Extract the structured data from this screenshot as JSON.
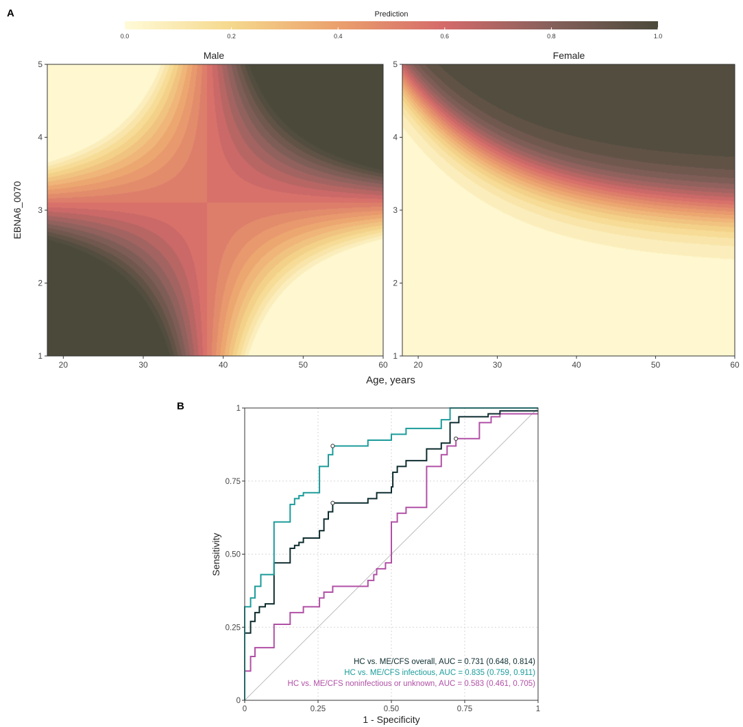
{
  "panel_a": {
    "label": "A",
    "colorbar": {
      "title": "Prediction",
      "ticks": [
        "0.0",
        "0.2",
        "0.4",
        "0.6",
        "0.8",
        "1.0"
      ],
      "tick_values": [
        0.0,
        0.2,
        0.4,
        0.6,
        0.8,
        1.0
      ],
      "colors": [
        "#fffbd8",
        "#f5d88c",
        "#eba06d",
        "#d46a6a",
        "#86605b",
        "#4b4a3a"
      ]
    }
  },
  "panel_b": {
    "label": "B"
  },
  "chart_data": [
    {
      "type": "heatmap",
      "panel": "A",
      "facet": "Male",
      "title": "Male",
      "xlabel": "Age, years",
      "ylabel": "EBNA6_0070",
      "xlim": [
        18,
        60
      ],
      "ylim": [
        1,
        5
      ],
      "xticks": [
        20,
        30,
        40,
        50,
        60
      ],
      "yticks": [
        1,
        2,
        3,
        4,
        5
      ],
      "value_range": [
        0,
        1
      ],
      "saddle_point": {
        "age": 38,
        "ebna6_0070": 3.1,
        "prediction": 0.55
      },
      "corner_predictions": {
        "age_18_ebna_1": 1.0,
        "age_18_ebna_5": 0.02,
        "age_60_ebna_1": 0.02,
        "age_60_ebna_5": 1.0
      }
    },
    {
      "type": "heatmap",
      "panel": "A",
      "facet": "Female",
      "title": "Female",
      "xlabel": "Age, years",
      "ylabel": "EBNA6_0070",
      "xlim": [
        18,
        60
      ],
      "ylim": [
        1,
        5
      ],
      "xticks": [
        20,
        30,
        40,
        50,
        60
      ],
      "yticks": [
        1,
        2,
        3,
        4,
        5
      ],
      "value_range": [
        0,
        1
      ],
      "corner_predictions": {
        "age_18_ebna_1": 0.0,
        "age_18_ebna_5": 0.55,
        "age_60_ebna_1": 0.0,
        "age_60_ebna_5": 1.0
      },
      "note": "prediction near 0 below EBNA6_0070 of about 3"
    },
    {
      "type": "line",
      "panel": "B",
      "title": "",
      "xlabel": "1 - Specificity",
      "ylabel": "Sensitivity",
      "xlim": [
        0,
        1
      ],
      "ylim": [
        0,
        1
      ],
      "xticks": [
        "0",
        "0.25",
        "0.50",
        "0.75",
        "1"
      ],
      "yticks": [
        "0",
        "0.25",
        "0.50",
        "0.75",
        "1"
      ],
      "series": [
        {
          "name": "HC vs. ME/CFS overall, AUC = 0.731 (0.648, 0.814)",
          "color": "#0c2b2e",
          "threshold_point": [
            0.3,
            0.675
          ],
          "points": [
            [
              0,
              0
            ],
            [
              0,
              0.23
            ],
            [
              0.02,
              0.23
            ],
            [
              0.02,
              0.27
            ],
            [
              0.035,
              0.27
            ],
            [
              0.035,
              0.3
            ],
            [
              0.05,
              0.3
            ],
            [
              0.05,
              0.32
            ],
            [
              0.07,
              0.32
            ],
            [
              0.07,
              0.33
            ],
            [
              0.1,
              0.33
            ],
            [
              0.1,
              0.47
            ],
            [
              0.155,
              0.47
            ],
            [
              0.155,
              0.52
            ],
            [
              0.17,
              0.52
            ],
            [
              0.17,
              0.53
            ],
            [
              0.185,
              0.53
            ],
            [
              0.185,
              0.54
            ],
            [
              0.2,
              0.54
            ],
            [
              0.2,
              0.555
            ],
            [
              0.255,
              0.555
            ],
            [
              0.255,
              0.58
            ],
            [
              0.27,
              0.58
            ],
            [
              0.27,
              0.62
            ],
            [
              0.285,
              0.62
            ],
            [
              0.285,
              0.645
            ],
            [
              0.3,
              0.645
            ],
            [
              0.3,
              0.675
            ],
            [
              0.42,
              0.675
            ],
            [
              0.42,
              0.69
            ],
            [
              0.45,
              0.69
            ],
            [
              0.45,
              0.71
            ],
            [
              0.5,
              0.71
            ],
            [
              0.5,
              0.73
            ],
            [
              0.505,
              0.73
            ],
            [
              0.505,
              0.78
            ],
            [
              0.52,
              0.78
            ],
            [
              0.52,
              0.8
            ],
            [
              0.55,
              0.8
            ],
            [
              0.55,
              0.82
            ],
            [
              0.62,
              0.82
            ],
            [
              0.62,
              0.86
            ],
            [
              0.67,
              0.86
            ],
            [
              0.67,
              0.88
            ],
            [
              0.7,
              0.88
            ],
            [
              0.7,
              0.95
            ],
            [
              0.73,
              0.95
            ],
            [
              0.73,
              0.97
            ],
            [
              0.83,
              0.97
            ],
            [
              0.83,
              0.98
            ],
            [
              0.87,
              0.98
            ],
            [
              0.87,
              0.99
            ],
            [
              1,
              0.99
            ]
          ]
        },
        {
          "name": "HC vs. ME/CFS infectious, AUC = 0.835 (0.759, 0.911)",
          "color": "#1a9b9a",
          "threshold_point": [
            0.3,
            0.87
          ],
          "points": [
            [
              0,
              0
            ],
            [
              0,
              0.32
            ],
            [
              0.02,
              0.32
            ],
            [
              0.02,
              0.35
            ],
            [
              0.035,
              0.35
            ],
            [
              0.035,
              0.39
            ],
            [
              0.055,
              0.39
            ],
            [
              0.055,
              0.43
            ],
            [
              0.1,
              0.43
            ],
            [
              0.1,
              0.61
            ],
            [
              0.155,
              0.61
            ],
            [
              0.155,
              0.67
            ],
            [
              0.17,
              0.67
            ],
            [
              0.17,
              0.69
            ],
            [
              0.185,
              0.69
            ],
            [
              0.185,
              0.7
            ],
            [
              0.2,
              0.7
            ],
            [
              0.2,
              0.71
            ],
            [
              0.255,
              0.71
            ],
            [
              0.255,
              0.8
            ],
            [
              0.285,
              0.8
            ],
            [
              0.285,
              0.84
            ],
            [
              0.3,
              0.84
            ],
            [
              0.3,
              0.87
            ],
            [
              0.42,
              0.87
            ],
            [
              0.42,
              0.89
            ],
            [
              0.5,
              0.89
            ],
            [
              0.5,
              0.91
            ],
            [
              0.55,
              0.91
            ],
            [
              0.55,
              0.93
            ],
            [
              0.67,
              0.93
            ],
            [
              0.67,
              0.96
            ],
            [
              0.7,
              0.96
            ],
            [
              0.7,
              1.0
            ],
            [
              1,
              1.0
            ]
          ]
        },
        {
          "name": "HC vs. ME/CFS noninfectious or unknown, AUC = 0.583 (0.461, 0.705)",
          "color": "#b04fa5",
          "threshold_point": [
            0.72,
            0.895
          ],
          "points": [
            [
              0,
              0
            ],
            [
              0,
              0.1
            ],
            [
              0.02,
              0.1
            ],
            [
              0.02,
              0.15
            ],
            [
              0.035,
              0.15
            ],
            [
              0.035,
              0.18
            ],
            [
              0.1,
              0.18
            ],
            [
              0.1,
              0.26
            ],
            [
              0.155,
              0.26
            ],
            [
              0.155,
              0.3
            ],
            [
              0.2,
              0.3
            ],
            [
              0.2,
              0.32
            ],
            [
              0.255,
              0.32
            ],
            [
              0.255,
              0.35
            ],
            [
              0.27,
              0.35
            ],
            [
              0.27,
              0.37
            ],
            [
              0.3,
              0.37
            ],
            [
              0.3,
              0.39
            ],
            [
              0.42,
              0.39
            ],
            [
              0.42,
              0.41
            ],
            [
              0.44,
              0.41
            ],
            [
              0.44,
              0.43
            ],
            [
              0.45,
              0.43
            ],
            [
              0.45,
              0.45
            ],
            [
              0.48,
              0.45
            ],
            [
              0.48,
              0.47
            ],
            [
              0.5,
              0.47
            ],
            [
              0.5,
              0.61
            ],
            [
              0.52,
              0.61
            ],
            [
              0.52,
              0.64
            ],
            [
              0.55,
              0.64
            ],
            [
              0.55,
              0.66
            ],
            [
              0.62,
              0.66
            ],
            [
              0.62,
              0.8
            ],
            [
              0.67,
              0.8
            ],
            [
              0.67,
              0.84
            ],
            [
              0.69,
              0.84
            ],
            [
              0.69,
              0.87
            ],
            [
              0.72,
              0.87
            ],
            [
              0.72,
              0.895
            ],
            [
              0.8,
              0.895
            ],
            [
              0.8,
              0.95
            ],
            [
              0.84,
              0.95
            ],
            [
              0.84,
              0.97
            ],
            [
              0.87,
              0.97
            ],
            [
              0.87,
              0.98
            ],
            [
              1,
              0.98
            ]
          ]
        },
        {
          "name": "reference diagonal",
          "color": "#bbbbbb",
          "points": [
            [
              0,
              0
            ],
            [
              1,
              1
            ]
          ]
        }
      ],
      "legend_position": "bottom-right",
      "grid": true
    }
  ]
}
